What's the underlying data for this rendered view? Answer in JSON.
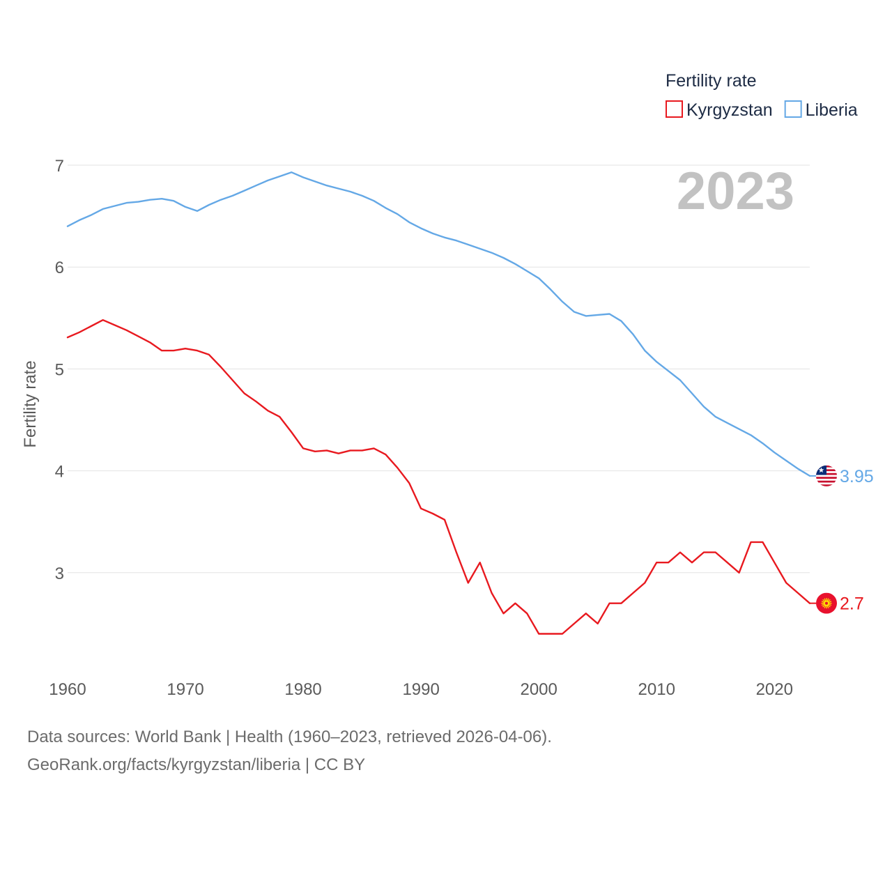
{
  "chart_data": {
    "type": "line",
    "legend_title": "Fertility rate",
    "ylabel": "Fertility rate",
    "xlabel": "",
    "year_display": "2023",
    "xlim": [
      1960,
      2023
    ],
    "ylim": [
      2.1,
      7.1
    ],
    "y_ticks": [
      3,
      4,
      5,
      6,
      7
    ],
    "x_ticks": [
      1960,
      1970,
      1980,
      1990,
      2000,
      2010,
      2020
    ],
    "legend_position": "top-right",
    "grid": true,
    "series": [
      {
        "name": "Kyrgyzstan",
        "color": "#e8191f",
        "end_label": "2.7",
        "x": [
          1960,
          1961,
          1962,
          1963,
          1964,
          1965,
          1966,
          1967,
          1968,
          1969,
          1970,
          1971,
          1972,
          1973,
          1974,
          1975,
          1976,
          1977,
          1978,
          1979,
          1980,
          1981,
          1982,
          1983,
          1984,
          1985,
          1986,
          1987,
          1988,
          1989,
          1990,
          1991,
          1992,
          1993,
          1994,
          1995,
          1996,
          1997,
          1998,
          1999,
          2000,
          2001,
          2002,
          2003,
          2004,
          2005,
          2006,
          2007,
          2008,
          2009,
          2010,
          2011,
          2012,
          2013,
          2014,
          2015,
          2016,
          2017,
          2018,
          2019,
          2020,
          2021,
          2022,
          2023
        ],
        "values": [
          5.31,
          5.36,
          5.42,
          5.48,
          5.43,
          5.38,
          5.32,
          5.26,
          5.18,
          5.18,
          5.2,
          5.18,
          5.14,
          5.02,
          4.89,
          4.76,
          4.68,
          4.59,
          4.53,
          4.38,
          4.22,
          4.19,
          4.2,
          4.17,
          4.2,
          4.2,
          4.22,
          4.16,
          4.03,
          3.88,
          3.63,
          3.58,
          3.52,
          3.2,
          2.9,
          3.1,
          2.8,
          2.6,
          2.7,
          2.6,
          2.4,
          2.4,
          2.4,
          2.5,
          2.6,
          2.5,
          2.7,
          2.7,
          2.8,
          2.9,
          3.1,
          3.1,
          3.2,
          3.1,
          3.2,
          3.2,
          3.1,
          3.0,
          3.3,
          3.3,
          3.1,
          2.9,
          2.8,
          2.7
        ]
      },
      {
        "name": "Liberia",
        "color": "#64a8e6",
        "end_label": "3.95",
        "x": [
          1960,
          1961,
          1962,
          1963,
          1964,
          1965,
          1966,
          1967,
          1968,
          1969,
          1970,
          1971,
          1972,
          1973,
          1974,
          1975,
          1976,
          1977,
          1978,
          1979,
          1980,
          1981,
          1982,
          1983,
          1984,
          1985,
          1986,
          1987,
          1988,
          1989,
          1990,
          1991,
          1992,
          1993,
          1994,
          1995,
          1996,
          1997,
          1998,
          1999,
          2000,
          2001,
          2002,
          2003,
          2004,
          2005,
          2006,
          2007,
          2008,
          2009,
          2010,
          2011,
          2012,
          2013,
          2014,
          2015,
          2016,
          2017,
          2018,
          2019,
          2020,
          2021,
          2022,
          2023
        ],
        "values": [
          6.4,
          6.46,
          6.51,
          6.57,
          6.6,
          6.63,
          6.64,
          6.66,
          6.67,
          6.65,
          6.59,
          6.55,
          6.61,
          6.66,
          6.7,
          6.75,
          6.8,
          6.85,
          6.89,
          6.93,
          6.88,
          6.84,
          6.8,
          6.77,
          6.74,
          6.7,
          6.65,
          6.58,
          6.52,
          6.44,
          6.38,
          6.33,
          6.29,
          6.26,
          6.22,
          6.18,
          6.14,
          6.09,
          6.03,
          5.96,
          5.89,
          5.78,
          5.66,
          5.56,
          5.52,
          5.53,
          5.54,
          5.47,
          5.34,
          5.18,
          5.07,
          4.98,
          4.89,
          4.76,
          4.63,
          4.53,
          4.47,
          4.41,
          4.35,
          4.27,
          4.18,
          4.1,
          4.02,
          3.95
        ]
      }
    ]
  },
  "footer": {
    "line1": "Data sources: World Bank | Health (1960–2023, retrieved 2026-04-06).",
    "line2": "GeoRank.org/facts/kyrgyzstan/liberia | CC BY"
  },
  "flags": {
    "kyrgyzstan": "kyrgyzstan-flag-icon",
    "liberia": "liberia-flag-icon"
  }
}
